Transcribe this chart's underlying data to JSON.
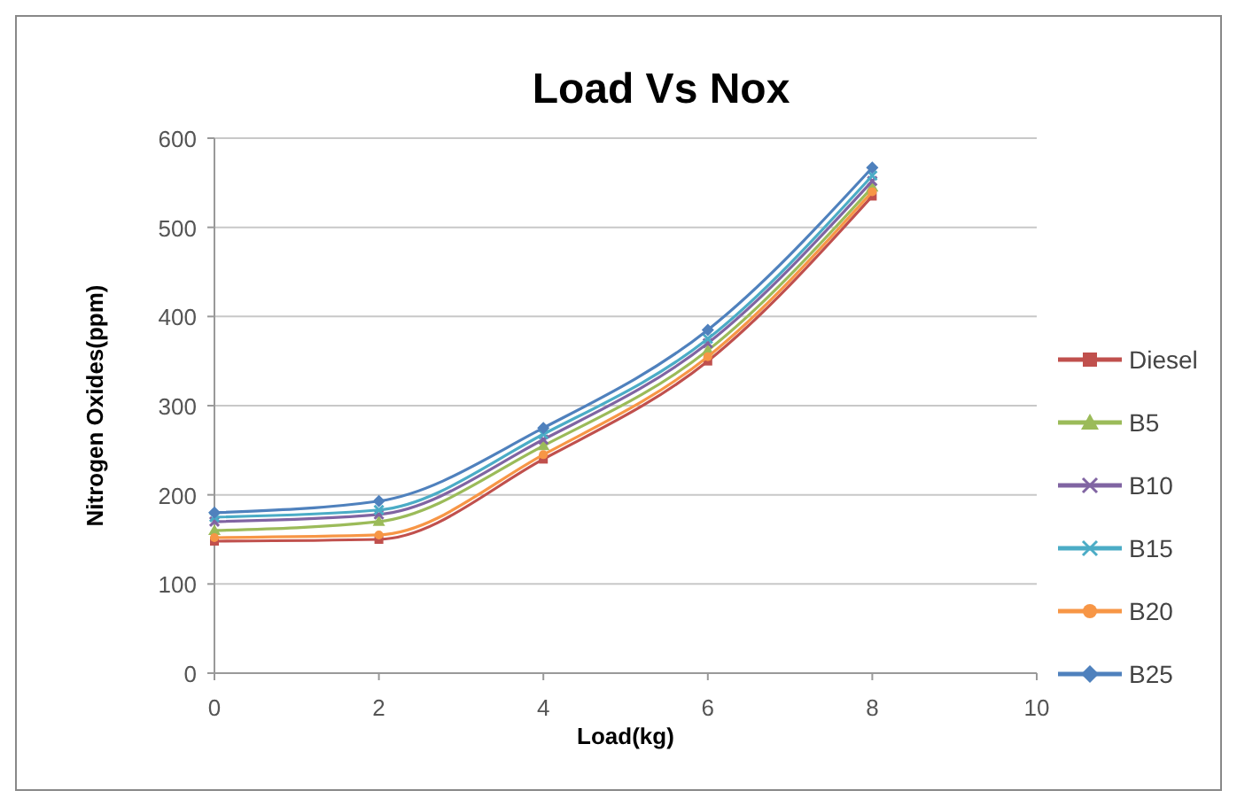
{
  "chart_data": {
    "type": "line",
    "title": "Load Vs Nox",
    "xlabel": "Load(kg)",
    "ylabel": "Nitrogen Oxides(ppm)",
    "x": [
      0,
      2,
      4,
      6,
      8
    ],
    "xlim": [
      0,
      10
    ],
    "xticks": [
      0,
      2,
      4,
      6,
      8,
      10
    ],
    "ylim": [
      0,
      600
    ],
    "yticks": [
      0,
      100,
      200,
      300,
      400,
      500,
      600
    ],
    "grid": "y",
    "legend": "right",
    "line_style": "solid",
    "series": [
      {
        "name": "Diesel",
        "color": "#c0504d",
        "marker": "square",
        "values": [
          148,
          150,
          240,
          350,
          535
        ]
      },
      {
        "name": "B5",
        "color": "#9bbb59",
        "marker": "triangle",
        "values": [
          160,
          170,
          255,
          362,
          545
        ]
      },
      {
        "name": "B10",
        "color": "#8064a2",
        "marker": "cross",
        "values": [
          170,
          178,
          262,
          370,
          552
        ]
      },
      {
        "name": "B15",
        "color": "#4bacc6",
        "marker": "cross",
        "values": [
          175,
          183,
          268,
          375,
          558
        ]
      },
      {
        "name": "B20",
        "color": "#f79646",
        "marker": "circle",
        "values": [
          152,
          155,
          245,
          355,
          540
        ]
      },
      {
        "name": "B25",
        "color": "#4f81bd",
        "marker": "diamond",
        "values": [
          180,
          193,
          275,
          385,
          567
        ]
      }
    ]
  }
}
